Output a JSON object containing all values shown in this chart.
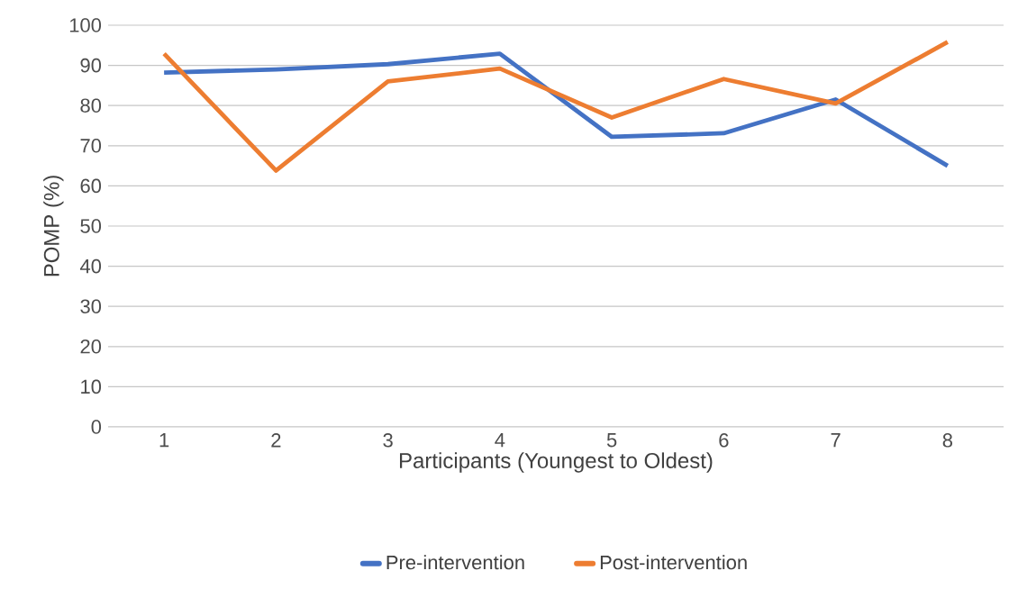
{
  "chart_data": {
    "type": "line",
    "xlabel": "Participants (Youngest to Oldest)",
    "ylabel": "POMP (%)",
    "categories": [
      "1",
      "2",
      "3",
      "4",
      "5",
      "6",
      "7",
      "8"
    ],
    "series": [
      {
        "name": "Pre-intervention",
        "color": "#4472c4",
        "values": [
          88.2,
          89,
          90.3,
          92.9,
          72.2,
          73.1,
          81.5,
          65
        ]
      },
      {
        "name": "Post-intervention",
        "color": "#ed7d31",
        "values": [
          92.9,
          63.8,
          86,
          89.2,
          77,
          86.6,
          80.5,
          95.8
        ]
      }
    ],
    "ylim": [
      0,
      100
    ],
    "yticks": [
      0,
      10,
      20,
      30,
      40,
      50,
      60,
      70,
      80,
      90,
      100
    ],
    "grid": "y",
    "legend": "bottom",
    "marker": "none",
    "line_style": "solid"
  }
}
